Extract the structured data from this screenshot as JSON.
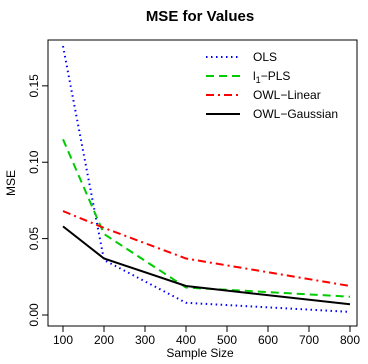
{
  "chart_data": {
    "type": "line",
    "title": "MSE for Values",
    "xlabel": "Sample Size",
    "ylabel": "MSE",
    "x": [
      100,
      200,
      400,
      800
    ],
    "xlim": [
      100,
      800
    ],
    "ylim": [
      0,
      0.18
    ],
    "xticks": [
      "100",
      "200",
      "300",
      "400",
      "500",
      "600",
      "700",
      "800"
    ],
    "yticks": [
      "0.00",
      "0.05",
      "0.10",
      "0.15"
    ],
    "grid": false,
    "legend_position": "top-right",
    "series": [
      {
        "name": "OLS",
        "values": [
          0.176,
          0.036,
          0.008,
          0.002
        ],
        "color": "#0000ff",
        "dash": "dotted"
      },
      {
        "name": "l1−PLS",
        "label_base": "l",
        "label_sub": "1",
        "label_rest": "−PLS",
        "values": [
          0.115,
          0.053,
          0.018,
          0.012
        ],
        "color": "#00cc00",
        "dash": "dashed"
      },
      {
        "name": "OWL−Linear",
        "values": [
          0.068,
          0.057,
          0.037,
          0.019
        ],
        "color": "#ff0000",
        "dash": "dashdot"
      },
      {
        "name": "OWL−Gaussian",
        "values": [
          0.058,
          0.037,
          0.019,
          0.007
        ],
        "color": "#000000",
        "dash": "solid"
      }
    ]
  }
}
